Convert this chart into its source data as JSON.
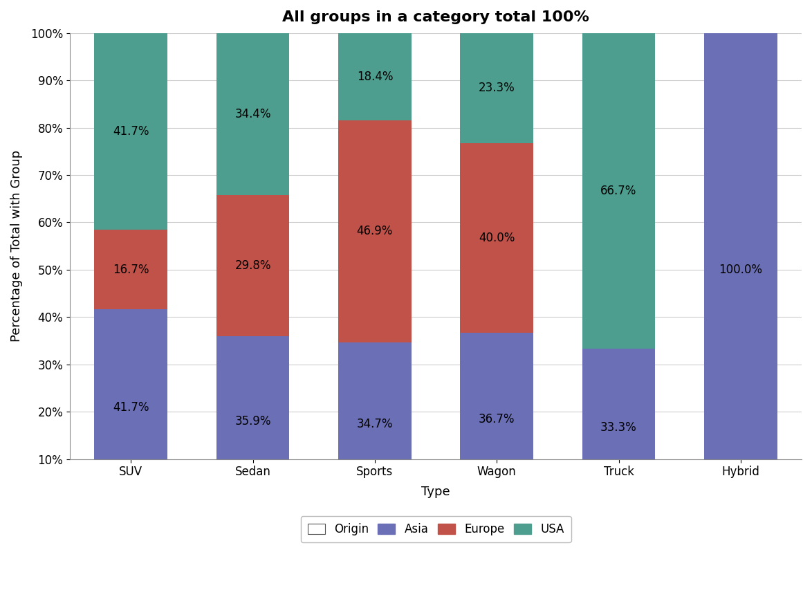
{
  "title": "All groups in a category total 100%",
  "xlabel": "Type",
  "ylabel": "Percentage of Total with Group",
  "categories": [
    "SUV",
    "Sedan",
    "Sports",
    "Wagon",
    "Truck",
    "Hybrid"
  ],
  "series": {
    "Asia": [
      41.7,
      35.9,
      34.7,
      36.7,
      33.3,
      100.0
    ],
    "Europe": [
      16.7,
      29.8,
      46.9,
      40.0,
      0.0,
      0.0
    ],
    "USA": [
      41.7,
      34.4,
      18.4,
      23.3,
      66.7,
      0.0
    ]
  },
  "colors": {
    "Asia": "#6b6fb5",
    "Europe": "#c0524a",
    "USA": "#4d9e8e"
  },
  "ylim": [
    10,
    100
  ],
  "yticks": [
    10,
    20,
    30,
    40,
    50,
    60,
    70,
    80,
    90,
    100
  ],
  "ytick_labels": [
    "10%",
    "20%",
    "30%",
    "40%",
    "50%",
    "60%",
    "70%",
    "80%",
    "90%",
    "100%"
  ],
  "legend_title": "Origin",
  "background_color": "#ffffff",
  "grid_color": "#cccccc",
  "bar_width": 0.6,
  "title_fontsize": 16,
  "label_fontsize": 13,
  "tick_fontsize": 12,
  "annotation_fontsize": 12
}
